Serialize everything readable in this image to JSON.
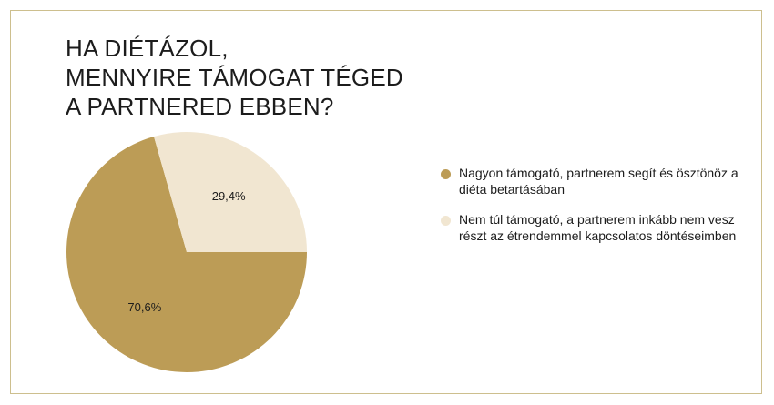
{
  "chart_data": {
    "type": "pie",
    "title_lines": [
      "HA DIÉTÁZOL,",
      "MENNYIRE TÁMOGAT TÉGED",
      "A PARTNERED EBBEN?"
    ],
    "slices": [
      {
        "label": "Nagyon támogató, partnerem segít és ösztönöz a diéta betartásában",
        "value": 70.6,
        "value_label": "70,6%",
        "color": "#bc9c56"
      },
      {
        "label": "Nem túl támogató, a partnerem inkább nem vesz részt az étrendemmel kapcsolatos döntéseimben",
        "value": 29.4,
        "value_label": "29,4%",
        "color": "#f1e6d1"
      }
    ],
    "legend_position": "right"
  },
  "frame_color": "#cdbf8e"
}
